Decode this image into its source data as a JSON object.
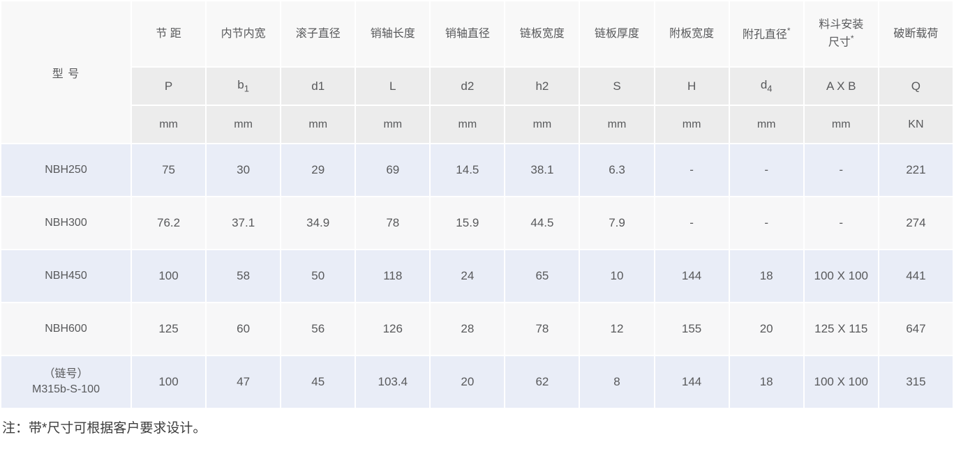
{
  "table": {
    "model_header": "型 号",
    "columns": [
      {
        "name_lines": [
          "节 距"
        ],
        "symbol": "P",
        "unit": "mm"
      },
      {
        "name_lines": [
          "内节内宽"
        ],
        "symbol": "b",
        "symbol_sub": "1",
        "unit": "mm"
      },
      {
        "name_lines": [
          "滚子直径"
        ],
        "symbol": "d1",
        "unit": "mm"
      },
      {
        "name_lines": [
          "销轴长度"
        ],
        "symbol": "L",
        "unit": "mm"
      },
      {
        "name_lines": [
          "销轴直径"
        ],
        "symbol": "d2",
        "unit": "mm"
      },
      {
        "name_lines": [
          "链板宽度"
        ],
        "symbol": "h2",
        "unit": "mm"
      },
      {
        "name_lines": [
          "链板厚度"
        ],
        "symbol": "S",
        "unit": "mm"
      },
      {
        "name_lines": [
          "附板宽度"
        ],
        "symbol": "H",
        "unit": "mm"
      },
      {
        "name_lines": [
          "附孔直径"
        ],
        "star": "*",
        "symbol": "d",
        "symbol_sub": "4",
        "unit": "mm"
      },
      {
        "name_lines": [
          "料斗安装",
          "尺寸"
        ],
        "star": "*",
        "symbol": "A X B",
        "unit": "mm"
      },
      {
        "name_lines": [
          "破断载荷"
        ],
        "symbol": "Q",
        "unit": "KN"
      }
    ],
    "rows": [
      {
        "model_lines": [
          "NBH250"
        ],
        "values": [
          "75",
          "30",
          "29",
          "69",
          "14.5",
          "38.1",
          "6.3",
          "-",
          "-",
          "-",
          "221"
        ]
      },
      {
        "model_lines": [
          "NBH300"
        ],
        "values": [
          "76.2",
          "37.1",
          "34.9",
          "78",
          "15.9",
          "44.5",
          "7.9",
          "-",
          "-",
          "-",
          "274"
        ]
      },
      {
        "model_lines": [
          "NBH450"
        ],
        "values": [
          "100",
          "58",
          "50",
          "118",
          "24",
          "65",
          "10",
          "144",
          "18",
          "100 X 100",
          "441"
        ]
      },
      {
        "model_lines": [
          "NBH600"
        ],
        "values": [
          "125",
          "60",
          "56",
          "126",
          "28",
          "78",
          "12",
          "155",
          "20",
          "125 X 115",
          "647"
        ]
      },
      {
        "model_lines": [
          "（链号）",
          "M315b-S-100"
        ],
        "values": [
          "100",
          "47",
          "45",
          "103.4",
          "20",
          "62",
          "8",
          "144",
          "18",
          "100 X 100",
          "315"
        ]
      }
    ]
  },
  "note": "注：带*尺寸可根据客户要求设计。",
  "colors": {
    "row_blue": "#e9edf7",
    "row_gray": "#f7f7f8",
    "header_gray": "#ececec",
    "header_light": "#f8f8f8",
    "text": "#58595b"
  }
}
